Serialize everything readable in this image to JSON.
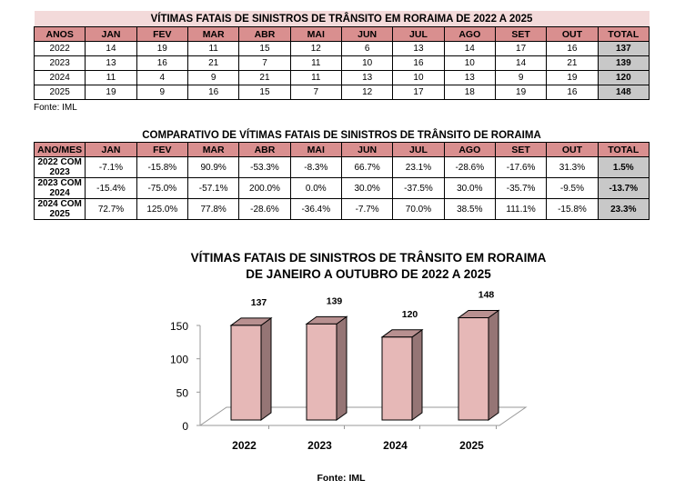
{
  "table1": {
    "title": "VÍTIMAS FATAIS DE SINISTROS DE TRÂNSITO EM RORAIMA DE 2022 A 2025",
    "headers": [
      "ANOS",
      "JAN",
      "FEV",
      "MAR",
      "ABR",
      "MAI",
      "JUN",
      "JUL",
      "AGO",
      "SET",
      "OUT",
      "TOTAL"
    ],
    "rows": [
      [
        "2022",
        "14",
        "19",
        "11",
        "15",
        "12",
        "6",
        "13",
        "14",
        "17",
        "16",
        "137"
      ],
      [
        "2023",
        "13",
        "16",
        "21",
        "7",
        "11",
        "10",
        "16",
        "10",
        "14",
        "21",
        "139"
      ],
      [
        "2024",
        "11",
        "4",
        "9",
        "21",
        "11",
        "13",
        "10",
        "13",
        "9",
        "19",
        "120"
      ],
      [
        "2025",
        "19",
        "9",
        "16",
        "15",
        "7",
        "12",
        "17",
        "18",
        "19",
        "16",
        "148"
      ]
    ],
    "source": "Fonte: IML"
  },
  "table2": {
    "title": "COMPARATIVO DE VÍTIMAS FATAIS DE SINISTROS DE TRÂNSITO DE RORAIMA",
    "headers": [
      "ANO/MES",
      "JAN",
      "FEV",
      "MAR",
      "ABR",
      "MAI",
      "JUN",
      "JUL",
      "AGO",
      "SET",
      "OUT",
      "TOTAL"
    ],
    "rows": [
      [
        "2022 COM 2023",
        "-7.1%",
        "-15.8%",
        "90.9%",
        "-53.3%",
        "-8.3%",
        "66.7%",
        "23.1%",
        "-28.6%",
        "-17.6%",
        "31.3%",
        "1.5%"
      ],
      [
        "2023 COM 2024",
        "-15.4%",
        "-75.0%",
        "-57.1%",
        "200.0%",
        "0.0%",
        "30.0%",
        "-37.5%",
        "30.0%",
        "-35.7%",
        "-9.5%",
        "-13.7%"
      ],
      [
        "2024 COM 2025",
        "72.7%",
        "125.0%",
        "77.8%",
        "-28.6%",
        "-36.4%",
        "-7.7%",
        "70.0%",
        "38.5%",
        "111.1%",
        "-15.8%",
        "23.3%"
      ]
    ]
  },
  "chart_data": {
    "type": "bar",
    "title": "VÍTIMAS FATAIS DE SINISTROS DE TRÂNSITO EM RORAIMA",
    "subtitle": "DE JANEIRO A OUTUBRO DE 2022 A 2025",
    "categories": [
      "2022",
      "2023",
      "2024",
      "2025"
    ],
    "values": [
      137,
      139,
      120,
      148
    ],
    "labels": [
      "137",
      "139",
      "120",
      "148"
    ],
    "yticks": [
      "0",
      "50",
      "100",
      "150"
    ],
    "ylim": [
      0,
      150
    ],
    "source": "Fonte: IML",
    "colors": {
      "front": "#e6b8b7",
      "side": "#957575",
      "top": "#b89090"
    }
  }
}
